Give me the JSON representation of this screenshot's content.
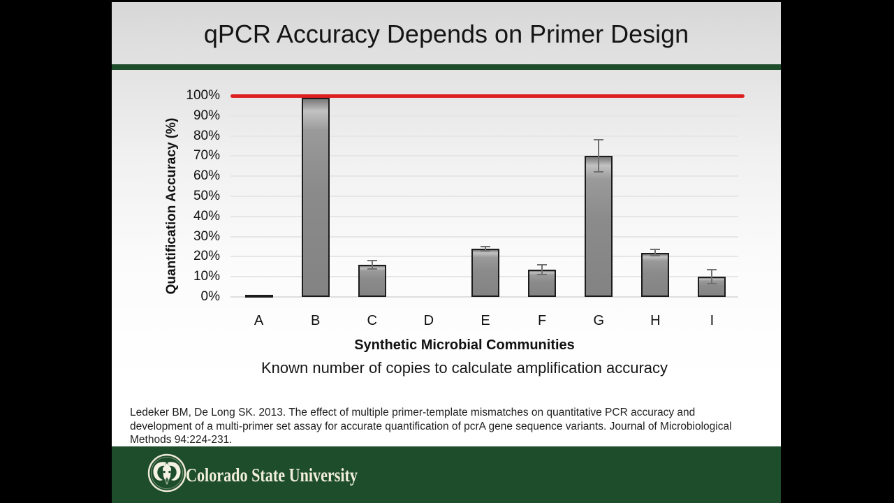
{
  "slide": {
    "title": "qPCR Accuracy Depends on Primer Design",
    "caption_sub": "Known number of copies to calculate amplification accuracy",
    "citation_lines": [
      "Ledeker BM, De Long SK. 2013. The effect of multiple primer-template mismatches on quantitative PCR accuracy and",
      "development of a multi-primer set assay for accurate quantification of pcrA gene sequence variants. Journal of Microbiological",
      "Methods 94:224-231."
    ],
    "footer_logo_text": "Colorado State University"
  },
  "colors": {
    "accent_green": "#1E4D2B",
    "footer_green": "#1E4D2B",
    "reference_line_red": "#DE1F1F",
    "bar_fill": "#8B8B8B",
    "bar_border": "#1C1C1C",
    "gridline": "#E6E6E6",
    "footer_text": "#F2EEDC"
  },
  "chart_data": {
    "type": "bar",
    "title": "",
    "xlabel": "Synthetic Microbial Communities",
    "ylabel": "Quantification Accuracy (%)",
    "categories": [
      "A",
      "B",
      "C",
      "D",
      "E",
      "F",
      "G",
      "H",
      "I"
    ],
    "values": [
      1,
      99,
      16,
      0,
      24,
      13.5,
      70,
      22,
      10
    ],
    "error_bars": [
      0,
      0,
      2,
      0,
      1,
      2.5,
      8,
      1.5,
      3.5
    ],
    "ytick_values": [
      0,
      10,
      20,
      30,
      40,
      50,
      60,
      70,
      80,
      90,
      100
    ],
    "ytick_labels": [
      "0%",
      "10%",
      "20%",
      "30%",
      "40%",
      "50%",
      "60%",
      "70%",
      "80%",
      "90%",
      "100%"
    ],
    "ylim": [
      0,
      100
    ],
    "grid": "horizontal",
    "legend": "none",
    "reference_line": {
      "value": 100,
      "color": "#DE1F1F"
    }
  }
}
